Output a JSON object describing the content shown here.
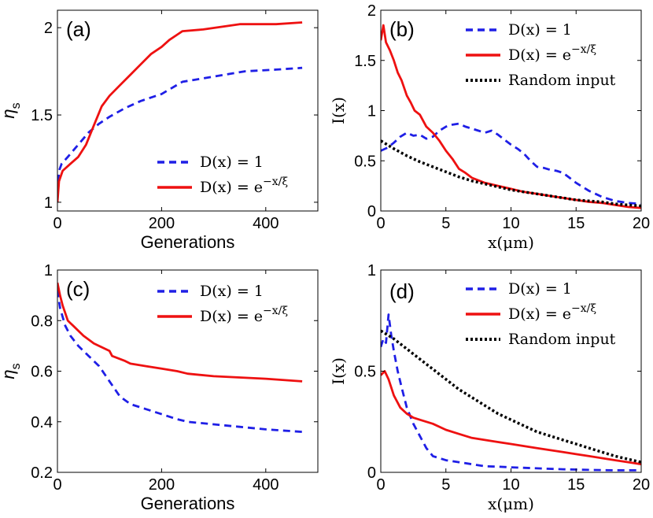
{
  "chart_data": [
    {
      "type": "line",
      "panel": "(a)",
      "xlabel": "Generations",
      "ylabel": "η_s",
      "ylabel_main": "η",
      "ylabel_sub": "s",
      "xlim": [
        0,
        500
      ],
      "ylim": [
        0.95,
        2.1
      ],
      "xticks": [
        0,
        200,
        400
      ],
      "xtick_labels": [
        "0",
        "200",
        "400"
      ],
      "yticks": [
        1,
        1.5,
        2
      ],
      "ytick_labels": [
        "1",
        "1.5",
        "2"
      ],
      "legend_position": "bottom-right",
      "series": [
        {
          "name": "D(x) = 1",
          "legend_base": "D(x) = 1",
          "legend_sup": "",
          "style": "dashed",
          "color": "#1f1fe6",
          "x": [
            0,
            3,
            8,
            20,
            40,
            60,
            80,
            100,
            130,
            160,
            200,
            240,
            300,
            360,
            420,
            470
          ],
          "y": [
            1.05,
            1.18,
            1.22,
            1.26,
            1.33,
            1.4,
            1.45,
            1.49,
            1.54,
            1.58,
            1.62,
            1.69,
            1.72,
            1.75,
            1.76,
            1.77
          ]
        },
        {
          "name": "D(x) = e^{-x/ξ}",
          "legend_base": "D(x) = e",
          "legend_sup": "−x/ξ",
          "style": "solid",
          "color": "#ee1111",
          "x": [
            0,
            3,
            10,
            25,
            40,
            55,
            70,
            85,
            100,
            120,
            140,
            160,
            180,
            200,
            215,
            230,
            240,
            280,
            350,
            420,
            470
          ],
          "y": [
            1.0,
            1.12,
            1.18,
            1.22,
            1.26,
            1.33,
            1.44,
            1.55,
            1.61,
            1.67,
            1.73,
            1.79,
            1.85,
            1.89,
            1.93,
            1.96,
            1.98,
            1.99,
            2.02,
            2.02,
            2.03
          ]
        }
      ]
    },
    {
      "type": "line",
      "panel": "(b)",
      "xlabel": "x(μm)",
      "ylabel": "I(x)",
      "xlim": [
        0,
        20
      ],
      "ylim": [
        0,
        2
      ],
      "xticks": [
        0,
        5,
        10,
        15,
        20
      ],
      "xtick_labels": [
        "0",
        "5",
        "10",
        "15",
        "20"
      ],
      "yticks": [
        0,
        0.5,
        1,
        1.5,
        2
      ],
      "ytick_labels": [
        "0",
        "0.5",
        "1",
        "1.5",
        "2"
      ],
      "legend_position": "top-right",
      "series": [
        {
          "name": "D(x) = 1",
          "legend_base": "D(x) = 1",
          "legend_sup": "",
          "style": "dashed",
          "color": "#1f1fe6",
          "x": [
            0,
            0.5,
            1,
            1.5,
            2,
            2.5,
            3,
            3.5,
            4,
            4.5,
            5,
            5.5,
            6,
            6.5,
            7,
            7.5,
            8,
            8.5,
            9,
            9.5,
            10,
            10.5,
            11,
            11.5,
            12,
            12.5,
            13,
            13.5,
            14,
            14.5,
            15,
            15.5,
            16,
            16.5,
            17,
            17.5,
            18,
            18.5,
            19,
            19.5,
            20
          ],
          "y": [
            0.6,
            0.63,
            0.68,
            0.74,
            0.78,
            0.75,
            0.76,
            0.72,
            0.74,
            0.8,
            0.84,
            0.86,
            0.87,
            0.84,
            0.82,
            0.8,
            0.78,
            0.8,
            0.76,
            0.71,
            0.66,
            0.62,
            0.57,
            0.5,
            0.44,
            0.43,
            0.41,
            0.4,
            0.38,
            0.33,
            0.28,
            0.24,
            0.2,
            0.17,
            0.14,
            0.12,
            0.1,
            0.09,
            0.08,
            0.075,
            0.07
          ]
        },
        {
          "name": "D(x) = e^{-x/ξ}",
          "legend_base": "D(x) = e",
          "legend_sup": "−x/ξ",
          "style": "solid",
          "color": "#ee1111",
          "x": [
            0,
            0.2,
            0.4,
            0.7,
            1,
            1.3,
            1.6,
            2,
            2.3,
            2.6,
            3,
            3.5,
            4,
            4.5,
            5,
            5.5,
            6,
            6.5,
            7,
            8,
            9,
            10,
            11,
            12,
            13,
            14,
            15,
            16,
            17,
            18,
            19,
            20
          ],
          "y": [
            1.7,
            1.85,
            1.68,
            1.6,
            1.5,
            1.38,
            1.3,
            1.15,
            1.08,
            1.0,
            0.96,
            0.84,
            0.78,
            0.7,
            0.6,
            0.52,
            0.42,
            0.38,
            0.33,
            0.28,
            0.25,
            0.22,
            0.19,
            0.17,
            0.15,
            0.13,
            0.11,
            0.09,
            0.08,
            0.06,
            0.04,
            0.03
          ]
        },
        {
          "name": "Random input",
          "legend_base": "Random input",
          "legend_sup": "",
          "style": "dotted",
          "color": "#000000",
          "x": [
            0,
            1,
            2,
            3,
            4,
            5,
            6,
            7,
            8,
            9,
            10,
            11,
            12,
            13,
            14,
            15,
            16,
            17,
            18,
            19,
            20
          ],
          "y": [
            0.7,
            0.62,
            0.55,
            0.49,
            0.44,
            0.39,
            0.34,
            0.3,
            0.27,
            0.24,
            0.21,
            0.19,
            0.17,
            0.15,
            0.13,
            0.11,
            0.1,
            0.09,
            0.07,
            0.06,
            0.05
          ]
        }
      ]
    },
    {
      "type": "line",
      "panel": "(c)",
      "xlabel": "Generations",
      "ylabel": "η_s",
      "ylabel_main": "η",
      "ylabel_sub": "s",
      "xlim": [
        0,
        500
      ],
      "ylim": [
        0.2,
        1.0
      ],
      "xticks": [
        0,
        200,
        400
      ],
      "xtick_labels": [
        "0",
        "200",
        "400"
      ],
      "yticks": [
        0.2,
        0.4,
        0.6,
        0.8,
        1
      ],
      "ytick_labels": [
        "0.2",
        "0.4",
        "0.6",
        "0.8",
        "1"
      ],
      "legend_position": "top-right",
      "series": [
        {
          "name": "D(x) = 1",
          "legend_base": "D(x) = 1",
          "legend_sup": "",
          "style": "dashed",
          "color": "#1f1fe6",
          "x": [
            0,
            5,
            15,
            25,
            40,
            60,
            80,
            100,
            120,
            140,
            170,
            200,
            230,
            250,
            300,
            350,
            400,
            470
          ],
          "y": [
            0.92,
            0.85,
            0.78,
            0.74,
            0.7,
            0.66,
            0.62,
            0.56,
            0.5,
            0.47,
            0.45,
            0.43,
            0.41,
            0.4,
            0.39,
            0.38,
            0.37,
            0.36
          ]
        },
        {
          "name": "D(x) = e^{-x/ξ}",
          "legend_base": "D(x) = e",
          "legend_sup": "−x/ξ",
          "style": "solid",
          "color": "#ee1111",
          "x": [
            0,
            5,
            10,
            15,
            20,
            25,
            30,
            50,
            70,
            100,
            105,
            130,
            140,
            170,
            200,
            230,
            250,
            300,
            350,
            400,
            470
          ],
          "y": [
            0.95,
            0.9,
            0.86,
            0.83,
            0.8,
            0.79,
            0.78,
            0.74,
            0.71,
            0.68,
            0.66,
            0.64,
            0.63,
            0.62,
            0.61,
            0.6,
            0.59,
            0.58,
            0.575,
            0.57,
            0.56
          ]
        }
      ]
    },
    {
      "type": "line",
      "panel": "(d)",
      "xlabel": "x(μm)",
      "ylabel": "I(x)",
      "xlim": [
        0,
        20
      ],
      "ylim": [
        0,
        1
      ],
      "xticks": [
        0,
        5,
        10,
        15,
        20
      ],
      "xtick_labels": [
        "0",
        "5",
        "10",
        "15",
        "20"
      ],
      "yticks": [
        0,
        0.5,
        1
      ],
      "ytick_labels": [
        "0",
        "0.5",
        "1"
      ],
      "legend_position": "top-right",
      "series": [
        {
          "name": "D(x) = 1",
          "legend_base": "D(x) = 1",
          "legend_sup": "",
          "style": "dashed",
          "color": "#1f1fe6",
          "x": [
            0,
            0.2,
            0.4,
            0.6,
            0.8,
            1.0,
            1.3,
            1.6,
            2.0,
            2.5,
            3.0,
            3.5,
            4.0,
            5,
            6,
            7,
            8,
            9,
            10,
            12,
            14,
            16,
            18,
            20
          ],
          "y": [
            0.62,
            0.66,
            0.64,
            0.78,
            0.68,
            0.6,
            0.5,
            0.42,
            0.32,
            0.24,
            0.18,
            0.12,
            0.08,
            0.06,
            0.05,
            0.04,
            0.03,
            0.028,
            0.025,
            0.02,
            0.015,
            0.012,
            0.01,
            0.01
          ]
        },
        {
          "name": "D(x) = e^{-x/ξ}",
          "legend_base": "D(x) = e",
          "legend_sup": "−x/ξ",
          "style": "solid",
          "color": "#ee1111",
          "x": [
            0,
            0.3,
            0.6,
            1.0,
            1.5,
            2.0,
            2.5,
            3,
            4,
            5,
            6,
            7,
            8,
            9,
            10,
            11,
            12,
            13,
            14,
            15,
            16,
            17,
            18,
            19,
            20
          ],
          "y": [
            0.48,
            0.5,
            0.46,
            0.38,
            0.32,
            0.29,
            0.27,
            0.26,
            0.24,
            0.21,
            0.19,
            0.17,
            0.16,
            0.15,
            0.14,
            0.13,
            0.12,
            0.11,
            0.1,
            0.09,
            0.08,
            0.07,
            0.06,
            0.05,
            0.04
          ]
        },
        {
          "name": "Random input",
          "legend_base": "Random input",
          "legend_sup": "",
          "style": "dotted",
          "color": "#000000",
          "x": [
            0,
            1,
            2,
            3,
            4,
            5,
            6,
            7,
            8,
            9,
            10,
            11,
            12,
            13,
            14,
            15,
            16,
            17,
            18,
            19,
            20
          ],
          "y": [
            0.7,
            0.66,
            0.61,
            0.56,
            0.51,
            0.46,
            0.41,
            0.37,
            0.33,
            0.29,
            0.26,
            0.23,
            0.2,
            0.18,
            0.16,
            0.14,
            0.12,
            0.1,
            0.08,
            0.065,
            0.05
          ]
        }
      ]
    }
  ]
}
